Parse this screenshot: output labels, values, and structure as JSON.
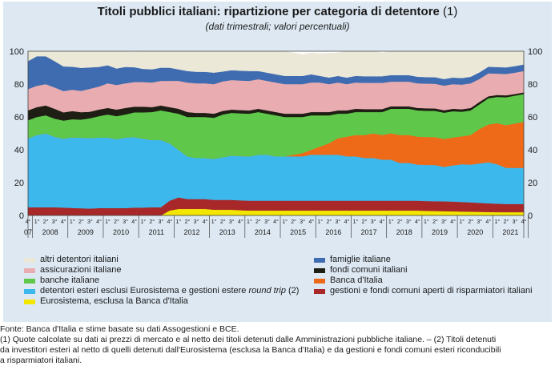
{
  "title": "Titoli pubblici italiani: ripartizione per categoria di detentore",
  "title_note": "(1)",
  "subtitle": "(dati trimestrali; valori percentuali)",
  "chart_data": {
    "type": "area",
    "stacked": true,
    "x_start": "2007Q4",
    "x_end": "2021Q4",
    "quarter_labels": [
      "4°",
      "1°",
      "2°",
      "3°"
    ],
    "year_labels": [
      "07",
      "2008",
      "2009",
      "2010",
      "2011",
      "2012",
      "2013",
      "2014",
      "2015",
      "2016",
      "2017",
      "2018",
      "2019",
      "2020",
      "2021"
    ],
    "ylim": [
      0,
      100
    ],
    "yticks": [
      0,
      20,
      40,
      60,
      80,
      100
    ],
    "series": [
      {
        "name": "Eurosistema, esclusa la Banca d'Italia",
        "color": "#f3e600",
        "values": [
          0,
          0,
          0,
          0,
          0,
          0,
          0,
          0,
          0,
          0,
          0,
          0,
          0,
          0,
          0,
          0,
          3,
          4,
          4,
          4,
          4,
          3.5,
          3.5,
          3.5,
          3.2,
          3,
          3,
          3,
          3,
          3,
          3,
          3,
          3,
          3,
          3,
          3,
          3,
          3,
          3,
          3,
          3,
          3,
          3,
          3,
          3,
          2.8,
          2.7,
          2.6,
          2.5,
          2.4,
          2.3,
          2.2,
          2.1,
          2,
          2,
          2,
          2
        ]
      },
      {
        "name": "gestioni e fondi comuni aperti di risparmiatori italiani",
        "color": "#a8282a",
        "values": [
          5,
          5,
          5,
          5,
          4.8,
          4.6,
          4.4,
          4.2,
          4.5,
          4.5,
          4.5,
          4.5,
          4.8,
          4.8,
          5,
          5,
          6,
          7,
          6,
          6,
          6,
          6,
          6,
          6,
          6,
          6,
          6,
          6,
          6,
          6,
          6,
          6,
          6,
          6,
          6,
          6,
          6,
          6,
          6,
          6,
          6,
          6,
          6,
          6,
          6,
          6,
          6,
          6,
          6,
          5.8,
          5.7,
          5.5,
          5.3,
          5.2,
          5,
          5,
          5
        ]
      },
      {
        "name": "detentori esteri esclusi Eurosistema e gestioni estere round trip (2)",
        "color": "#3cb8ec",
        "values": [
          42,
          44,
          45,
          43,
          42,
          43,
          43,
          43,
          43,
          43,
          42,
          43,
          43,
          42,
          41,
          41,
          35,
          29,
          26,
          25,
          25,
          25,
          26,
          27,
          27,
          27,
          28,
          28,
          27,
          27,
          27,
          27,
          28,
          28,
          28,
          28,
          27,
          27,
          26,
          26,
          25,
          25,
          23,
          23,
          22,
          22,
          22,
          21,
          22,
          23,
          23,
          24,
          25,
          24,
          22,
          22,
          22
        ]
      },
      {
        "name": "Banca d'Italia",
        "color": "#ef6a18",
        "values": [
          0,
          0,
          0,
          0,
          0,
          0,
          0,
          0,
          0,
          0,
          0,
          0,
          0,
          0,
          0,
          0,
          0,
          0,
          0,
          0,
          0,
          0,
          0,
          0,
          0,
          0,
          0,
          0,
          0,
          0,
          1,
          2,
          3,
          5,
          7,
          10,
          12,
          13,
          14,
          15,
          15,
          16,
          17,
          17,
          17,
          17,
          17,
          17,
          17,
          17,
          18,
          21,
          23,
          25,
          26,
          27,
          28
        ]
      },
      {
        "name": "banche italiane",
        "color": "#5fc84a",
        "values": [
          11,
          11,
          11,
          11,
          11,
          11,
          11,
          12,
          13,
          14,
          14,
          14,
          15,
          16,
          17,
          18,
          19,
          22,
          24,
          25,
          25,
          25,
          26,
          26,
          26,
          26,
          26,
          25,
          25,
          24,
          23,
          22,
          21,
          19,
          17,
          15,
          14,
          14,
          14,
          13,
          14,
          15,
          16,
          16,
          16,
          16,
          16,
          16,
          16,
          15,
          15,
          15,
          16,
          16,
          17,
          17,
          17
        ]
      },
      {
        "name": "fondi comuni italiani",
        "color": "#1e1e14",
        "values": [
          6,
          6,
          6,
          6,
          5,
          5,
          4.5,
          4,
          4,
          4,
          4,
          4,
          3.5,
          3.5,
          3,
          3,
          3,
          3,
          3,
          2.5,
          2.5,
          2.5,
          2.2,
          2,
          2,
          2,
          2,
          2,
          2,
          2,
          2,
          2,
          2,
          2,
          2,
          2,
          2,
          2,
          1.8,
          1.8,
          1.8,
          1.5,
          1.5,
          1.5,
          1.5,
          1.5,
          1.5,
          1.5,
          1.5,
          1.5,
          1.5,
          1.5,
          1.2,
          1.2,
          1.2,
          1,
          1
        ]
      },
      {
        "name": "assicurazioni italiane",
        "color": "#e9acb0",
        "values": [
          13,
          13,
          13,
          13,
          13,
          13,
          13,
          14,
          14,
          15,
          15,
          15,
          15,
          15,
          15,
          15,
          16,
          17,
          18,
          18,
          18,
          18,
          18,
          18,
          18,
          18,
          18,
          18,
          18,
          18,
          18,
          18,
          18,
          18,
          17,
          17,
          16,
          16,
          16,
          16,
          16,
          15,
          15,
          15,
          15,
          15,
          15,
          15,
          15,
          15,
          15,
          14,
          14,
          13,
          13,
          13,
          13
        ]
      },
      {
        "name": "famiglie italiane",
        "color": "#3f6cb0",
        "values": [
          17,
          18,
          17,
          16,
          15,
          14,
          14,
          13,
          12,
          11,
          10,
          10,
          9,
          8,
          8,
          8,
          8,
          7,
          7,
          7,
          7,
          7,
          6,
          6,
          6,
          6,
          5,
          5,
          5,
          5,
          5,
          5,
          5,
          4,
          4,
          4,
          4,
          4,
          4,
          4,
          4,
          4,
          4,
          4,
          4,
          4,
          4,
          4,
          4,
          4,
          4,
          4,
          4,
          4,
          4,
          4,
          4
        ]
      },
      {
        "name": "altri detentori italiani",
        "color": "#ebe8d8",
        "values": [
          6,
          3,
          3,
          6,
          9.2,
          9.4,
          10.1,
          9.8,
          9.5,
          8.5,
          10.5,
          9.5,
          9.2,
          10.7,
          11,
          10,
          10,
          11,
          12,
          12.5,
          12.5,
          13,
          12.3,
          11.5,
          11.8,
          12,
          12,
          13,
          14,
          15,
          14,
          13,
          13,
          13.5,
          14.8,
          14,
          16,
          14.9,
          16.2,
          16.2,
          14.2,
          14.5,
          14.5,
          14.5,
          15.5,
          16.7,
          16.8,
          17.9,
          17,
          18.3,
          15.5,
          13.8,
          11.4,
          10.6,
          9.8,
          9,
          8
        ]
      }
    ]
  },
  "legend": [
    {
      "label": "altri detentori italiani",
      "color": "#ebe8d8"
    },
    {
      "label": "famiglie italiane",
      "color": "#3f6cb0"
    },
    {
      "label": "assicurazioni italiane",
      "color": "#e9acb0"
    },
    {
      "label": "fondi comuni italiani",
      "color": "#1e1e14"
    },
    {
      "label": "banche italiane",
      "color": "#5fc84a"
    },
    {
      "label": "Banca d'Italia",
      "color": "#ef6a18"
    },
    {
      "label": "detentori esteri esclusi Eurosistema e gestioni estere round trip (2)",
      "color": "#3cb8ec"
    },
    {
      "label": "gestioni e fondi comuni aperti di risparmiatori italiani",
      "color": "#a8282a"
    },
    {
      "label": "Eurosistema, esclusa la Banca d'Italia",
      "color": "#f3e600"
    }
  ],
  "notes": {
    "source": "Fonte: Banca d'Italia e stime basate su dati Assogestioni e BCE.",
    "note1_line1": "(1) Quote calcolate su dati ai prezzi di mercato e al netto dei titoli detenuti dalle Amministrazioni pubbliche italiane. – (2) Titoli detenuti",
    "note1_line2": "da investitori esteri al netto di quelli detenuti dall'Eurosistema (esclusa la Banca d'Italia) e da gestioni e fondi comuni esteri riconducibili",
    "note1_line3": "a risparmiatori italiani."
  }
}
